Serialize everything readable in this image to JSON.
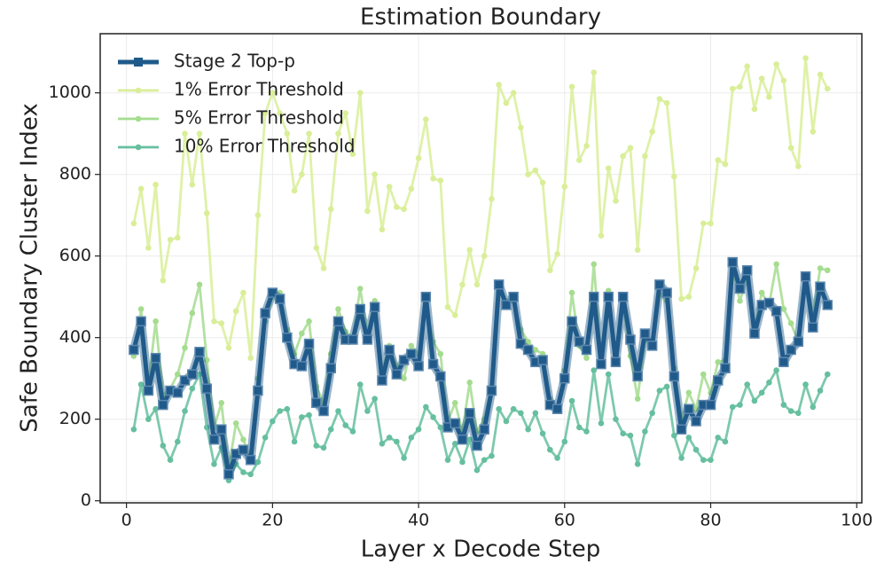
{
  "chart_data": {
    "type": "line",
    "title": "Estimation Boundary",
    "x_label": "Layer x Decode Step",
    "y_label": "Safe Boundary Cluster Index",
    "x": [
      1,
      2,
      3,
      4,
      5,
      6,
      7,
      8,
      9,
      10,
      11,
      12,
      13,
      14,
      15,
      16,
      17,
      18,
      19,
      20,
      21,
      22,
      23,
      24,
      25,
      26,
      27,
      28,
      29,
      30,
      31,
      32,
      33,
      34,
      35,
      36,
      37,
      38,
      39,
      40,
      41,
      42,
      43,
      44,
      45,
      46,
      47,
      48,
      49,
      50,
      51,
      52,
      53,
      54,
      55,
      56,
      57,
      58,
      59,
      60,
      61,
      62,
      63,
      64,
      65,
      66,
      67,
      68,
      69,
      70,
      71,
      72,
      73,
      74,
      75,
      76,
      77,
      78,
      79,
      80,
      81,
      82,
      83,
      84,
      85,
      86,
      87,
      88,
      89,
      90,
      91,
      92,
      93,
      94,
      95,
      96
    ],
    "series": [
      {
        "name": "Stage 2 Top-p",
        "color": "#1f5a8a",
        "marker": "square",
        "values": [
          370,
          440,
          270,
          350,
          235,
          270,
          265,
          295,
          310,
          365,
          275,
          150,
          175,
          65,
          115,
          125,
          100,
          270,
          460,
          510,
          495,
          400,
          335,
          330,
          385,
          240,
          220,
          325,
          440,
          395,
          395,
          470,
          395,
          475,
          295,
          370,
          310,
          345,
          360,
          330,
          500,
          335,
          305,
          180,
          190,
          150,
          215,
          135,
          175,
          270,
          530,
          480,
          500,
          385,
          370,
          340,
          345,
          235,
          225,
          300,
          440,
          390,
          370,
          500,
          335,
          500,
          340,
          500,
          395,
          305,
          410,
          380,
          530,
          510,
          305,
          175,
          225,
          195,
          235,
          235,
          295,
          325,
          585,
          520,
          565,
          410,
          480,
          485,
          465,
          340,
          370,
          390,
          550,
          425,
          525,
          480
        ]
      },
      {
        "name": "1% Error Threshold",
        "color": "#d9ee98",
        "marker": "circle",
        "values": [
          680,
          765,
          620,
          775,
          540,
          640,
          645,
          900,
          775,
          900,
          705,
          440,
          435,
          375,
          465,
          510,
          350,
          700,
          950,
          1000,
          950,
          900,
          760,
          800,
          900,
          620,
          570,
          715,
          900,
          950,
          850,
          1000,
          710,
          800,
          665,
          770,
          720,
          715,
          765,
          840,
          935,
          790,
          785,
          475,
          455,
          530,
          615,
          530,
          600,
          740,
          1020,
          975,
          1000,
          915,
          800,
          810,
          780,
          565,
          605,
          770,
          1015,
          835,
          870,
          1050,
          650,
          815,
          735,
          845,
          865,
          615,
          845,
          905,
          985,
          975,
          795,
          495,
          500,
          570,
          680,
          680,
          835,
          825,
          1010,
          1015,
          1065,
          960,
          1035,
          990,
          1070,
          1030,
          865,
          820,
          1085,
          905,
          1045,
          1010
        ]
      },
      {
        "name": "5% Error Threshold",
        "color": "#a5dc8f",
        "marker": "circle",
        "values": [
          355,
          470,
          285,
          440,
          260,
          275,
          310,
          375,
          460,
          530,
          345,
          180,
          240,
          80,
          190,
          150,
          105,
          300,
          440,
          500,
          510,
          420,
          360,
          410,
          440,
          280,
          240,
          360,
          470,
          415,
          400,
          520,
          410,
          490,
          320,
          380,
          330,
          300,
          380,
          360,
          480,
          390,
          360,
          195,
          240,
          170,
          290,
          170,
          200,
          280,
          510,
          490,
          490,
          420,
          390,
          370,
          360,
          250,
          230,
          320,
          510,
          380,
          350,
          580,
          350,
          515,
          355,
          480,
          355,
          250,
          395,
          375,
          505,
          490,
          325,
          200,
          265,
          225,
          310,
          265,
          340,
          345,
          570,
          490,
          545,
          425,
          510,
          480,
          580,
          470,
          435,
          390,
          555,
          455,
          570,
          565
        ]
      },
      {
        "name": "10% Error Threshold",
        "color": "#66bf9f",
        "marker": "circle",
        "values": [
          175,
          285,
          200,
          225,
          135,
          100,
          145,
          220,
          275,
          310,
          180,
          90,
          130,
          50,
          90,
          70,
          65,
          95,
          155,
          195,
          220,
          225,
          145,
          205,
          210,
          135,
          130,
          175,
          220,
          185,
          170,
          285,
          220,
          250,
          140,
          155,
          145,
          105,
          155,
          175,
          230,
          205,
          180,
          100,
          140,
          95,
          150,
          75,
          100,
          110,
          225,
          195,
          225,
          215,
          175,
          215,
          165,
          125,
          105,
          145,
          245,
          180,
          170,
          320,
          190,
          310,
          200,
          165,
          160,
          90,
          170,
          215,
          270,
          280,
          160,
          105,
          155,
          125,
          100,
          100,
          155,
          145,
          230,
          235,
          285,
          245,
          265,
          290,
          320,
          235,
          220,
          215,
          285,
          230,
          270,
          310
        ]
      }
    ],
    "xlim": [
      -3.6,
      100.7
    ],
    "ylim": [
      -5,
      1145
    ],
    "xticks": [
      0,
      20,
      40,
      60,
      80,
      100
    ],
    "yticks": [
      0,
      200,
      400,
      600,
      800,
      1000
    ],
    "grid": true,
    "legend": "upper left"
  }
}
